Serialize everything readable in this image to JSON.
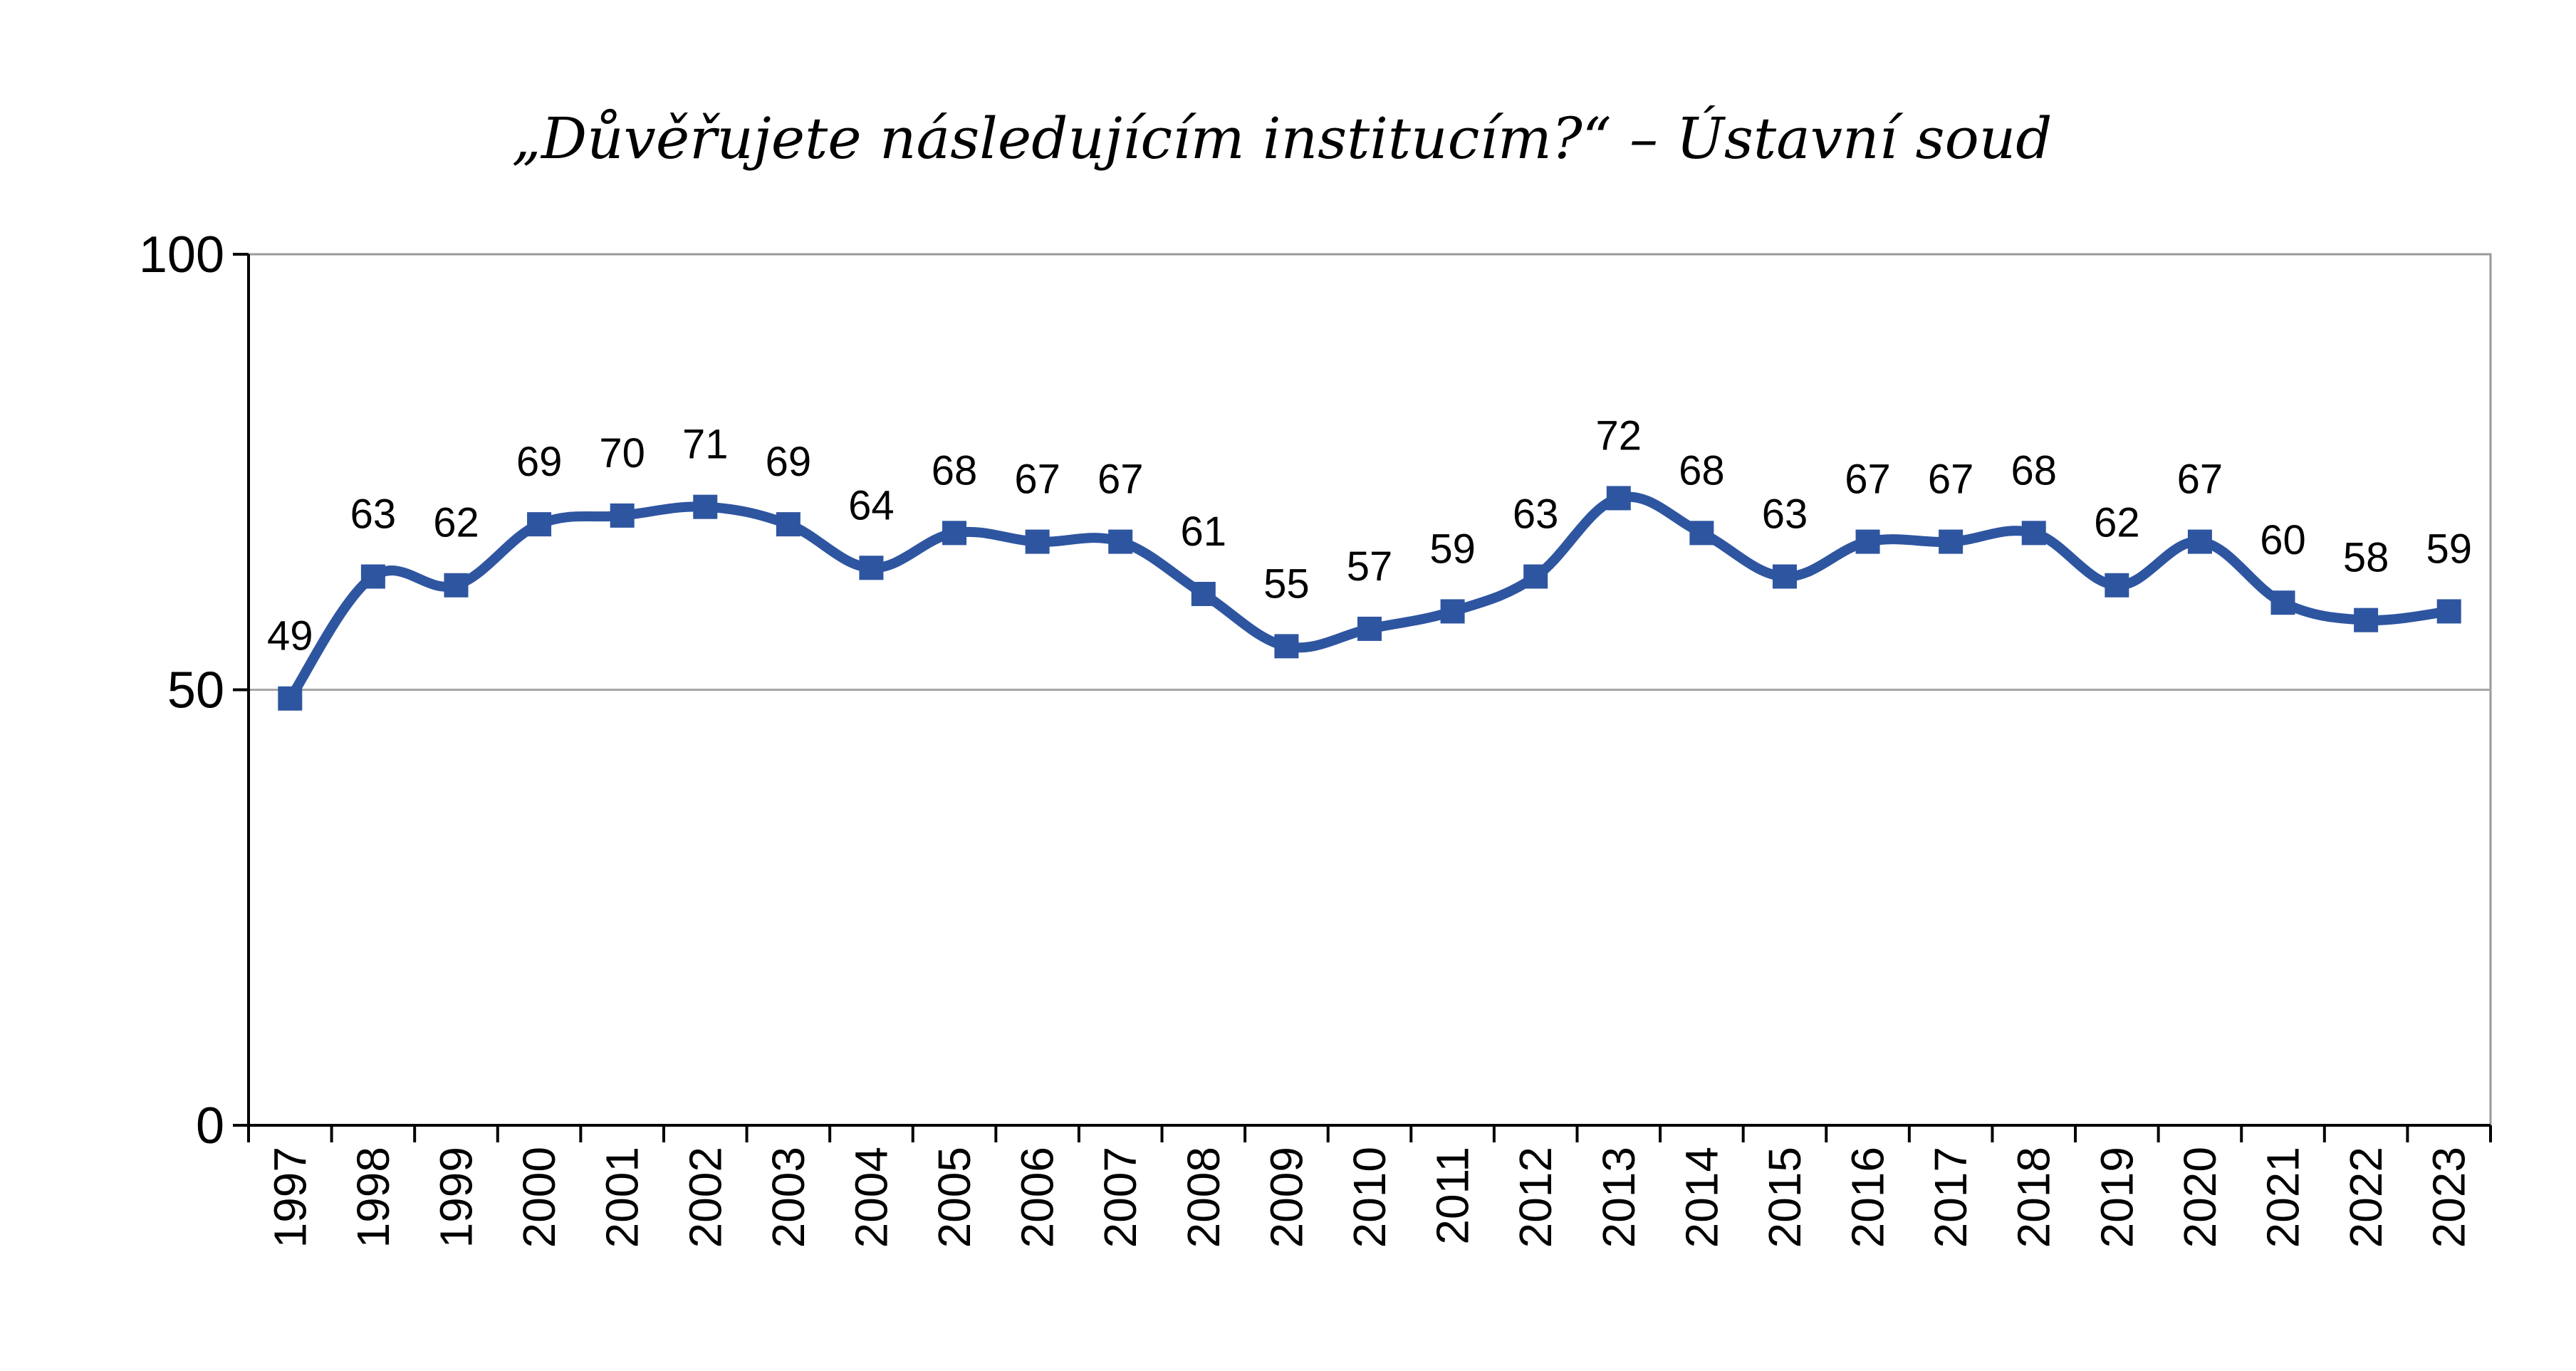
{
  "chart_data": {
    "type": "line",
    "title": "„Důvěřujete následujícím institucím?“ – Ústavní soud",
    "xlabel": "",
    "ylabel": "",
    "ylim": [
      0,
      100
    ],
    "yticks": [
      0,
      50,
      100
    ],
    "grid": "horizontal at 50",
    "legend": "none",
    "series_color": "#2E55A0",
    "categories": [
      "1997",
      "1998",
      "1999",
      "2000",
      "2001",
      "2002",
      "2003",
      "2004",
      "2005",
      "2006",
      "2007",
      "2008",
      "2009",
      "2010",
      "2011",
      "2012",
      "2013",
      "2014",
      "2015",
      "2016",
      "2017",
      "2018",
      "2019",
      "2020",
      "2021",
      "2022",
      "2023"
    ],
    "series": [
      {
        "values": [
          49,
          63,
          62,
          69,
          70,
          71,
          69,
          64,
          68,
          67,
          67,
          61,
          55,
          57,
          59,
          63,
          72,
          68,
          63,
          67,
          67,
          68,
          62,
          67,
          60,
          58,
          59
        ]
      }
    ]
  }
}
